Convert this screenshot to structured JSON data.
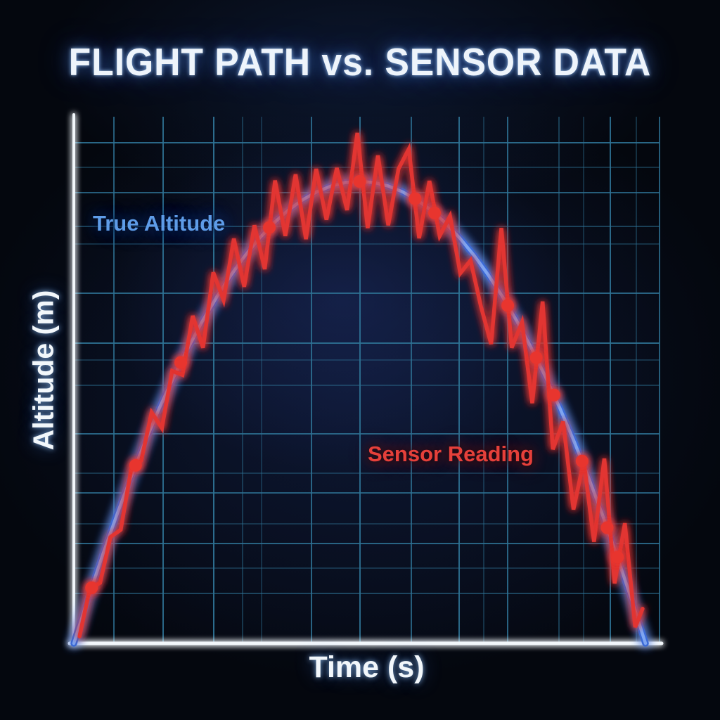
{
  "title": "FLIGHT PATH vs. SENSOR DATA",
  "axis_labels": {
    "x": "Time (s)",
    "y": "Altitude (m)"
  },
  "annotations": {
    "true_altitude": "True Altitude",
    "sensor_reading": "Sensor Reading"
  },
  "colors": {
    "background": "#04070e",
    "plot_haze": "#101a3c",
    "grid": "#2e7294",
    "axis": "#f2f7fb",
    "title_text": "#eef4fb",
    "true_altitude": "#5b93ea",
    "true_altitude_core": "#7ea6f2",
    "true_altitude_edge": "#3b6bd6",
    "sensor_reading": "#e23430",
    "sample_dot": "#e8352e"
  },
  "chart_data": {
    "type": "line",
    "title": "FLIGHT PATH vs. SENSOR DATA",
    "xlabel": "Time (s)",
    "ylabel": "Altitude (m)",
    "xlim": [
      0,
      10
    ],
    "ylim": [
      0,
      114
    ],
    "grid": true,
    "legend": "inline-text-labels",
    "series": [
      {
        "name": "True Altitude",
        "key": "true_altitude",
        "color": "#5b93ea",
        "style": "smooth",
        "x": [
          0,
          0.25,
          0.5,
          0.75,
          1,
          1.25,
          1.5,
          1.75,
          2,
          2.25,
          2.5,
          2.75,
          3,
          3.25,
          3.5,
          3.75,
          4,
          4.25,
          4.5,
          4.75,
          5,
          5.25,
          5.5,
          5.75,
          6,
          6.25,
          6.5,
          6.75,
          7,
          7.25,
          7.5,
          7.75,
          8,
          8.25,
          8.5,
          8.75,
          9,
          9.25,
          9.5,
          9.75,
          10
        ],
        "y": [
          0,
          9.75,
          19,
          27.75,
          36,
          43.75,
          51,
          57.75,
          64,
          69.75,
          75,
          79.75,
          84,
          87.75,
          91,
          93.75,
          96,
          97.75,
          99,
          99.75,
          100,
          99.75,
          99,
          97.75,
          96,
          93.75,
          91,
          87.75,
          84,
          79.75,
          75,
          69.75,
          64,
          57.75,
          51,
          43.75,
          36,
          27.75,
          19,
          9.75,
          0
        ]
      },
      {
        "name": "Sensor Reading",
        "key": "sensor_reading",
        "color": "#e23430",
        "style": "jagged",
        "x": [
          0.1,
          0.28,
          0.46,
          0.64,
          0.82,
          1.0,
          1.18,
          1.36,
          1.54,
          1.72,
          1.9,
          2.08,
          2.26,
          2.44,
          2.62,
          2.8,
          2.98,
          3.16,
          3.34,
          3.52,
          3.7,
          3.88,
          4.06,
          4.24,
          4.42,
          4.6,
          4.78,
          4.96,
          5.14,
          5.32,
          5.5,
          5.68,
          5.86,
          6.04,
          6.22,
          6.4,
          6.58,
          6.76,
          6.94,
          7.12,
          7.3,
          7.48,
          7.66,
          7.84,
          8.02,
          8.2,
          8.38,
          8.56,
          8.74,
          8.92,
          9.1,
          9.28,
          9.46,
          9.64,
          9.82,
          9.95
        ],
        "y": [
          1.5,
          11.9,
          13.1,
          23.0,
          24.6,
          37.5,
          39.6,
          50.0,
          46.6,
          59.0,
          58.1,
          70.9,
          64.0,
          80.3,
          74.3,
          87.6,
          77.2,
          90.5,
          81.0,
          100.2,
          88.2,
          101.5,
          87.5,
          102.7,
          91.7,
          102.9,
          93.8,
          110.5,
          89.9,
          105.6,
          90.5,
          102.7,
          107.0,
          87.7,
          100.1,
          88.2,
          92.5,
          80.1,
          82.9,
          73.0,
          64.8,
          89.9,
          64.0,
          69.5,
          52.0,
          74.0,
          42.0,
          48.0,
          29.0,
          39.5,
          22.0,
          40.0,
          13.0,
          26.0,
          3.5,
          7.5
        ]
      }
    ],
    "sample_points": {
      "description": "red sensor-sample markers lying on the true-altitude curve",
      "color": "#e8352e",
      "x": [
        0.31,
        1.08,
        1.87,
        3.42,
        5.0,
        5.97,
        6.31,
        7.59,
        8.09,
        8.4,
        8.89,
        9.33,
        9.51
      ],
      "y": [
        12.02,
        38.54,
        60.81,
        90.02,
        100.0,
        96.26,
        93.16,
        73.13,
        61.83,
        53.76,
        39.47,
        25.03,
        18.65
      ]
    }
  }
}
